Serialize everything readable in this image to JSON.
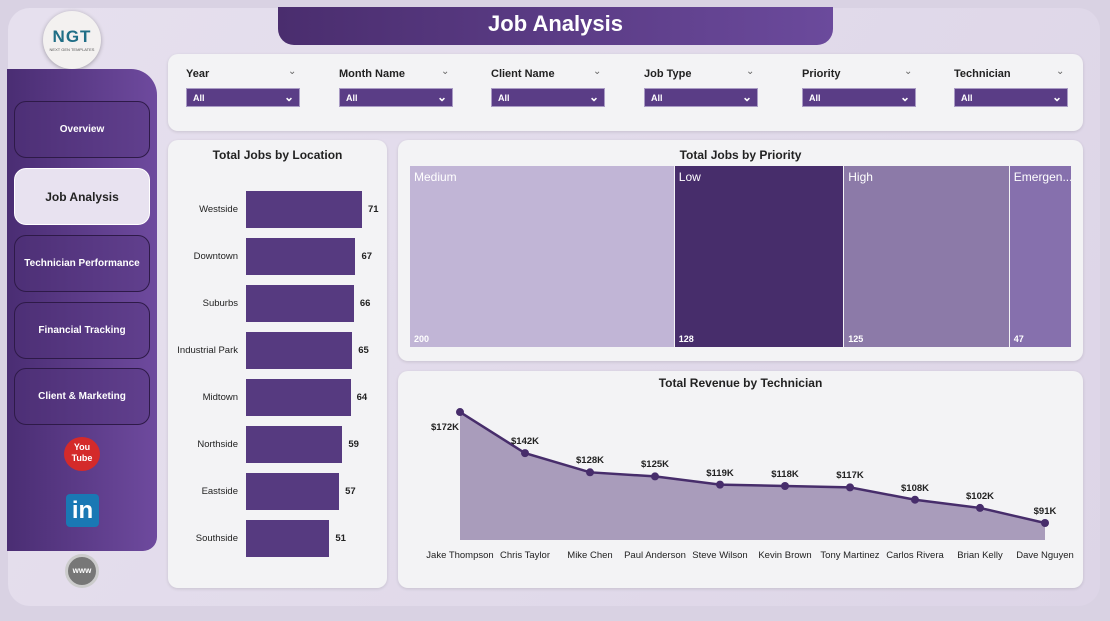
{
  "header": {
    "title": "Job Analysis"
  },
  "logo": {
    "text": "NGT",
    "subtitle": "NEXT GEN TEMPLATES"
  },
  "sidebar": {
    "items": [
      {
        "label": "Overview"
      },
      {
        "label": "Job Analysis",
        "active": true
      },
      {
        "label": "Technician Performance"
      },
      {
        "label": "Financial Tracking"
      },
      {
        "label": "Client & Marketing"
      }
    ],
    "social": [
      {
        "icon": "youtube-icon",
        "label": "You Tube"
      },
      {
        "icon": "linkedin-icon",
        "label": "in"
      },
      {
        "icon": "web-icon",
        "label": "www"
      }
    ]
  },
  "filters": [
    {
      "label": "Year",
      "value": "All"
    },
    {
      "label": "Month Name",
      "value": "All"
    },
    {
      "label": "Client Name",
      "value": "All"
    },
    {
      "label": "Job Type",
      "value": "All"
    },
    {
      "label": "Priority",
      "value": "All"
    },
    {
      "label": "Technician",
      "value": "All"
    }
  ],
  "colors": {
    "accent": "#563a80",
    "medium": "#c1b5d6",
    "low": "#472d6b",
    "high": "#8c7aa8",
    "emergency": "#8670ad"
  },
  "chart_data": [
    {
      "type": "bar",
      "orientation": "horizontal",
      "title": "Total Jobs by Location",
      "categories": [
        "Westside",
        "Downtown",
        "Suburbs",
        "Industrial Park",
        "Midtown",
        "Northside",
        "Eastside",
        "Southside"
      ],
      "values": [
        71,
        67,
        66,
        65,
        64,
        59,
        57,
        51
      ]
    },
    {
      "type": "treemap",
      "title": "Total Jobs by Priority",
      "categories": [
        "Medium",
        "Low",
        "High",
        "Emergen..."
      ],
      "values": [
        200,
        128,
        125,
        47
      ]
    },
    {
      "type": "area",
      "title": "Total Revenue by Technician",
      "categories": [
        "Jake Thompson",
        "Chris Taylor",
        "Mike Chen",
        "Paul Anderson",
        "Steve Wilson",
        "Kevin Brown",
        "Tony Martinez",
        "Carlos Rivera",
        "Brian Kelly",
        "Dave Nguyen"
      ],
      "values": [
        172,
        142,
        128,
        125,
        119,
        118,
        117,
        108,
        102,
        91
      ],
      "labels": [
        "$172K",
        "$142K",
        "$128K",
        "$125K",
        "$119K",
        "$118K",
        "$117K",
        "$108K",
        "$102K",
        "$91K"
      ],
      "unit": "K USD"
    }
  ]
}
